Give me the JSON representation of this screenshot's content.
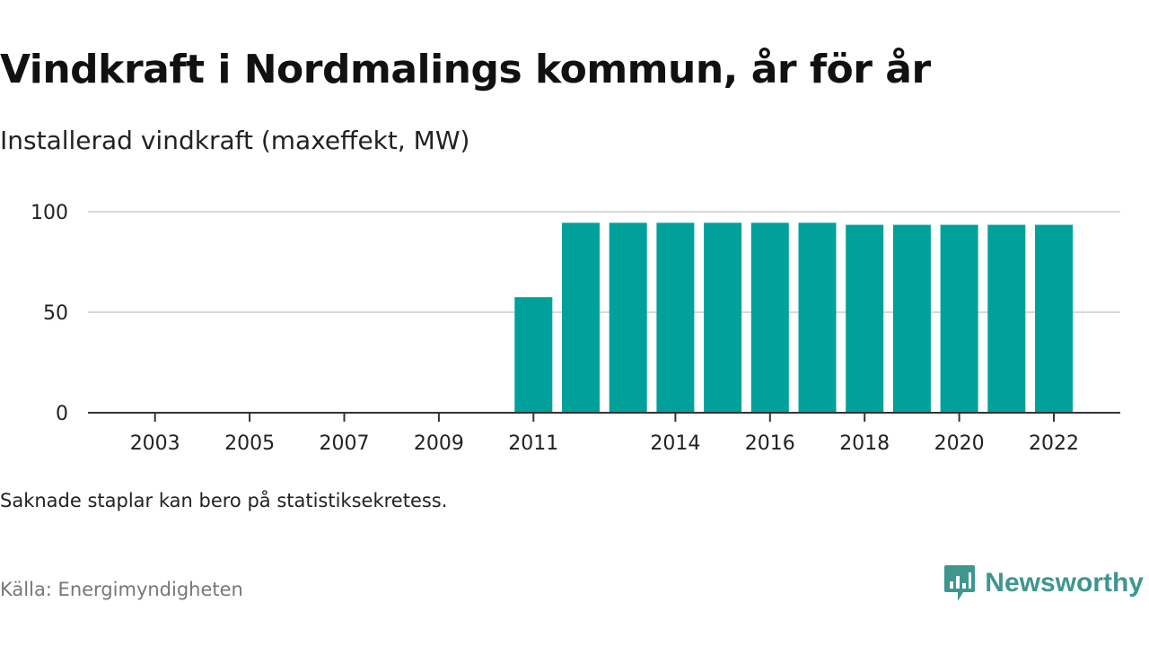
{
  "title": "Vindkraft i Nordmalings kommun, år för år",
  "subtitle": "Installerad vindkraft (maxeffekt, MW)",
  "note": "Saknade staplar kan bero på statistiksekretess.",
  "source": "Källa: Energimyndigheten",
  "brand": {
    "name": "Newsworthy",
    "icon": "newsworthy-logo-icon"
  },
  "colors": {
    "bar": "#00a19a",
    "grid": "#d9d9d9",
    "axis": "#333333",
    "brand": "#3e968f"
  },
  "chart_data": {
    "type": "bar",
    "title": "Vindkraft i Nordmalings kommun, år för år",
    "subtitle": "Installerad vindkraft (maxeffekt, MW)",
    "xlabel": "",
    "ylabel": "",
    "categories": [
      "2002",
      "2003",
      "2004",
      "2005",
      "2006",
      "2007",
      "2008",
      "2009",
      "2010",
      "2011",
      "2012",
      "2013",
      "2014",
      "2015",
      "2016",
      "2017",
      "2018",
      "2019",
      "2020",
      "2021",
      "2022"
    ],
    "values": [
      null,
      null,
      null,
      null,
      null,
      null,
      null,
      null,
      null,
      57.5,
      94.5,
      94.5,
      94.5,
      94.5,
      94.5,
      94.5,
      93.5,
      93.5,
      93.5,
      93.5,
      93.5
    ],
    "x_tick_labels": [
      "2003",
      "2005",
      "2007",
      "2009",
      "2011",
      "2014",
      "2016",
      "2018",
      "2020",
      "2022"
    ],
    "y_ticks": [
      0,
      50,
      100
    ],
    "ylim": [
      0,
      100
    ],
    "grid": true,
    "legend": "none"
  }
}
